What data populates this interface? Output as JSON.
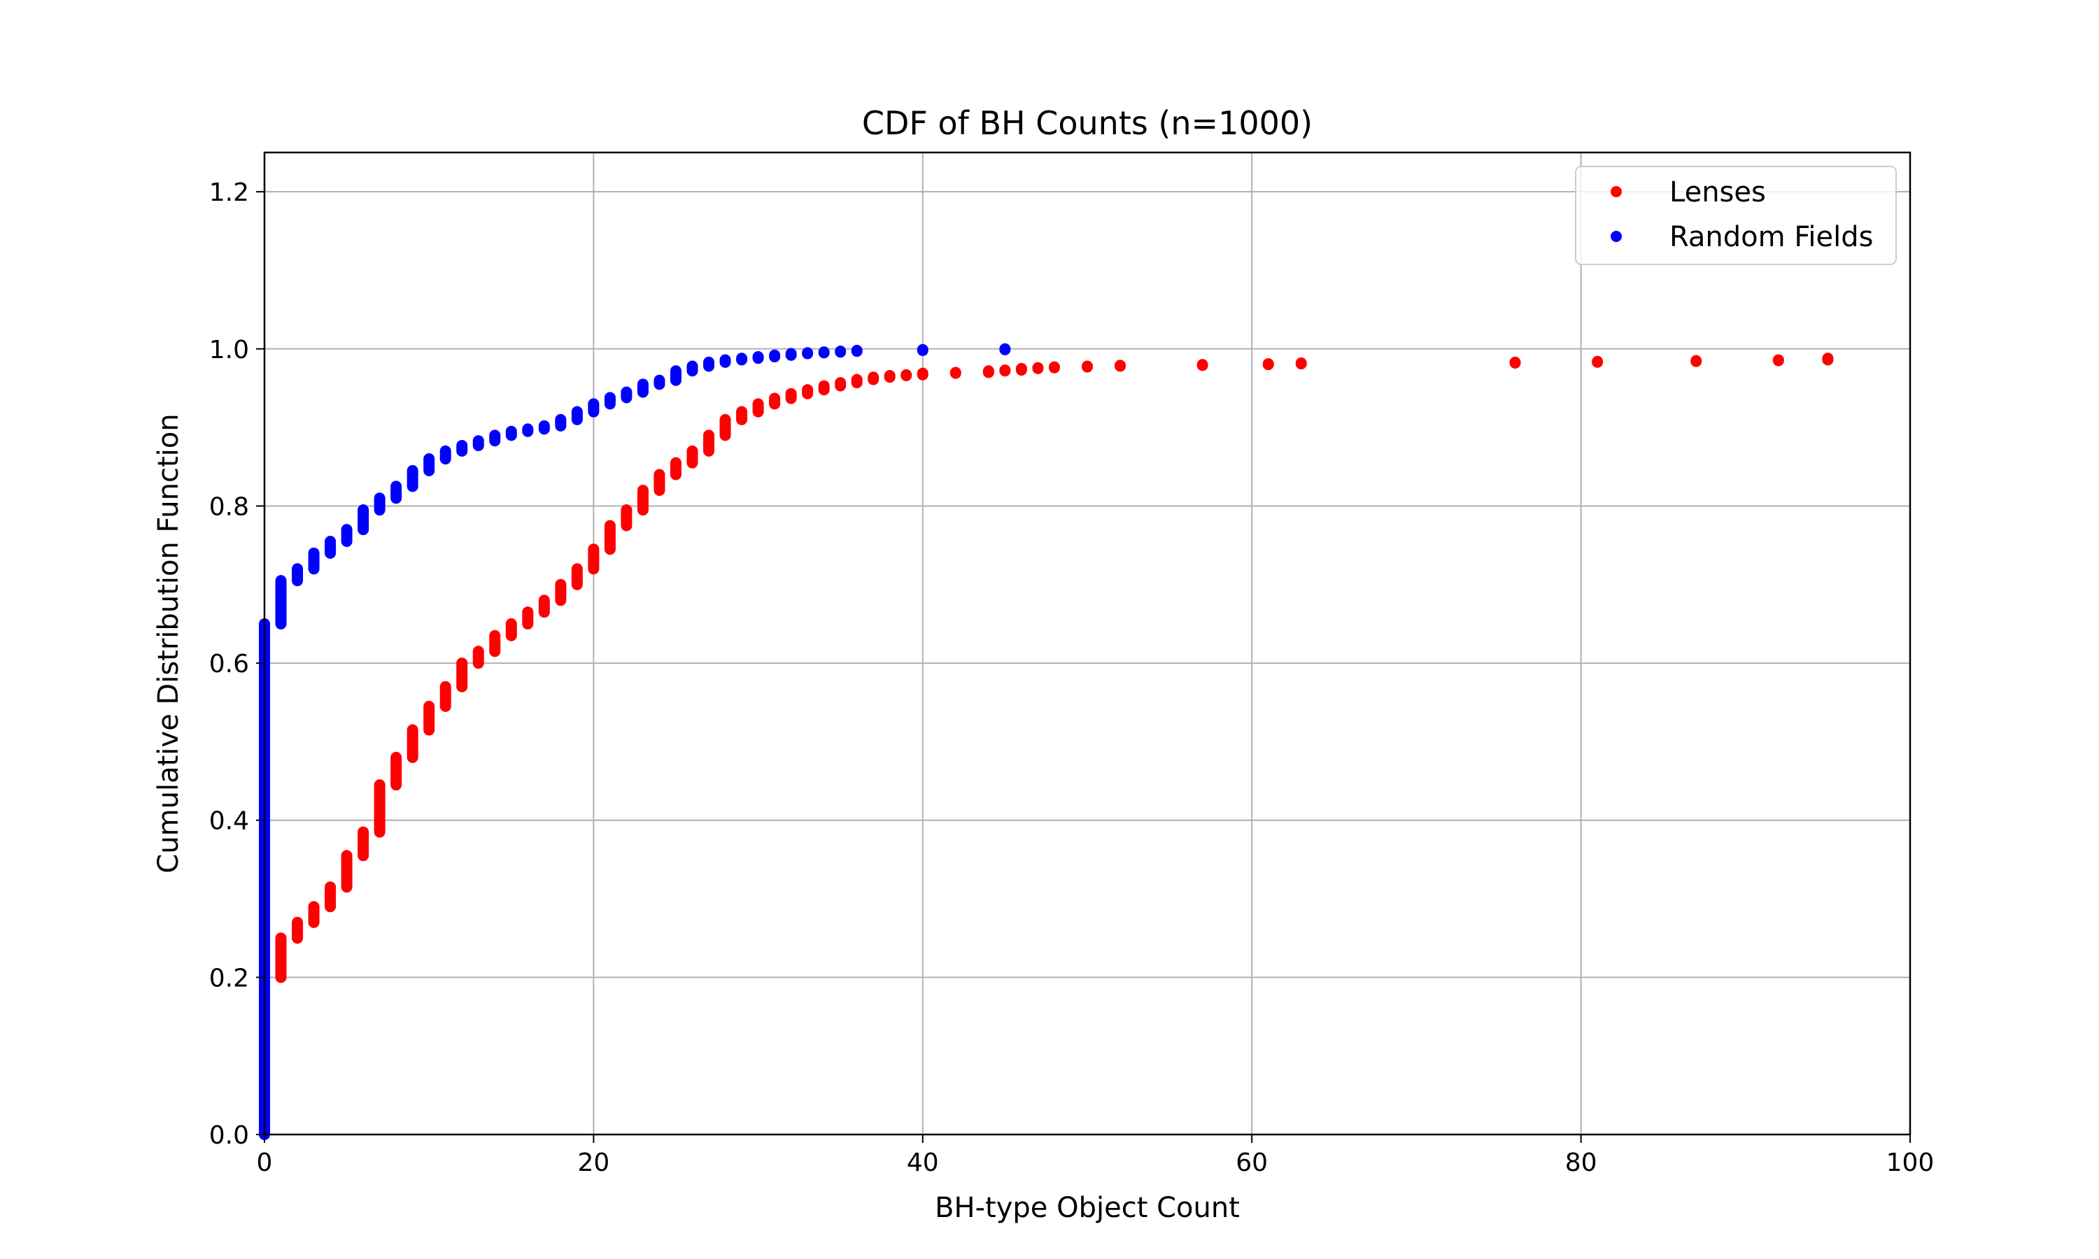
{
  "chart_data": {
    "type": "scatter",
    "title": "CDF of BH Counts (n=1000)",
    "xlabel": "BH-type Object Count",
    "ylabel": "Cumulative Distribution Function",
    "xlim": [
      0,
      100
    ],
    "ylim": [
      0,
      1.25
    ],
    "xticks": [
      "0",
      "20",
      "40",
      "60",
      "80",
      "100"
    ],
    "yticks": [
      "0.0",
      "0.2",
      "0.4",
      "0.6",
      "0.8",
      "1.0",
      "1.2"
    ],
    "grid": true,
    "legend_position": "top-right",
    "colors": {
      "lenses": "#ff0000",
      "random_fields": "#0000ff"
    },
    "series": [
      {
        "name": "Lenses",
        "color": "#ff0000",
        "steps": [
          [
            1,
            0.2,
            0.25
          ],
          [
            2,
            0.25,
            0.27
          ],
          [
            3,
            0.27,
            0.29
          ],
          [
            4,
            0.29,
            0.315
          ],
          [
            5,
            0.315,
            0.355
          ],
          [
            6,
            0.355,
            0.385
          ],
          [
            7,
            0.385,
            0.445
          ],
          [
            8,
            0.445,
            0.48
          ],
          [
            9,
            0.48,
            0.515
          ],
          [
            10,
            0.515,
            0.545
          ],
          [
            11,
            0.545,
            0.57
          ],
          [
            12,
            0.57,
            0.6
          ],
          [
            13,
            0.6,
            0.615
          ],
          [
            14,
            0.615,
            0.635
          ],
          [
            15,
            0.635,
            0.65
          ],
          [
            16,
            0.65,
            0.665
          ],
          [
            17,
            0.665,
            0.68
          ],
          [
            18,
            0.68,
            0.7
          ],
          [
            19,
            0.7,
            0.72
          ],
          [
            20,
            0.72,
            0.745
          ],
          [
            21,
            0.745,
            0.775
          ],
          [
            22,
            0.775,
            0.795
          ],
          [
            23,
            0.795,
            0.82
          ],
          [
            24,
            0.82,
            0.84
          ],
          [
            25,
            0.84,
            0.855
          ],
          [
            26,
            0.855,
            0.87
          ],
          [
            27,
            0.87,
            0.89
          ],
          [
            28,
            0.89,
            0.91
          ],
          [
            29,
            0.91,
            0.92
          ],
          [
            30,
            0.92,
            0.93
          ],
          [
            31,
            0.93,
            0.937
          ],
          [
            32,
            0.937,
            0.943
          ],
          [
            33,
            0.943,
            0.948
          ],
          [
            34,
            0.948,
            0.953
          ],
          [
            35,
            0.953,
            0.957
          ],
          [
            36,
            0.957,
            0.961
          ],
          [
            37,
            0.961,
            0.964
          ],
          [
            38,
            0.964,
            0.966
          ],
          [
            39,
            0.966,
            0.967
          ],
          [
            40,
            0.967,
            0.969
          ],
          [
            42,
            0.969,
            0.97
          ],
          [
            44,
            0.97,
            0.972
          ],
          [
            45,
            0.972,
            0.973
          ],
          [
            46,
            0.973,
            0.975
          ],
          [
            47,
            0.975,
            0.976
          ],
          [
            48,
            0.976,
            0.977
          ],
          [
            50,
            0.977,
            0.978
          ],
          [
            52,
            0.978,
            0.979
          ],
          [
            57,
            0.979,
            0.98
          ],
          [
            61,
            0.98,
            0.981
          ],
          [
            63,
            0.981,
            0.982
          ],
          [
            76,
            0.982,
            0.983
          ],
          [
            81,
            0.983,
            0.984
          ],
          [
            87,
            0.984,
            0.985
          ],
          [
            92,
            0.985,
            0.986
          ],
          [
            95,
            0.986,
            0.988
          ]
        ]
      },
      {
        "name": "Random Fields",
        "color": "#0000ff",
        "steps": [
          [
            0,
            0.0,
            0.65
          ],
          [
            1,
            0.65,
            0.705
          ],
          [
            2,
            0.705,
            0.72
          ],
          [
            3,
            0.72,
            0.74
          ],
          [
            4,
            0.74,
            0.755
          ],
          [
            5,
            0.755,
            0.77
          ],
          [
            6,
            0.77,
            0.795
          ],
          [
            7,
            0.795,
            0.81
          ],
          [
            8,
            0.81,
            0.825
          ],
          [
            9,
            0.825,
            0.845
          ],
          [
            10,
            0.845,
            0.86
          ],
          [
            11,
            0.86,
            0.87
          ],
          [
            12,
            0.87,
            0.877
          ],
          [
            13,
            0.877,
            0.883
          ],
          [
            14,
            0.883,
            0.89
          ],
          [
            15,
            0.89,
            0.895
          ],
          [
            16,
            0.895,
            0.898
          ],
          [
            17,
            0.898,
            0.902
          ],
          [
            18,
            0.902,
            0.91
          ],
          [
            19,
            0.91,
            0.92
          ],
          [
            20,
            0.92,
            0.93
          ],
          [
            21,
            0.93,
            0.938
          ],
          [
            22,
            0.938,
            0.945
          ],
          [
            23,
            0.945,
            0.955
          ],
          [
            24,
            0.955,
            0.96
          ],
          [
            25,
            0.96,
            0.972
          ],
          [
            26,
            0.972,
            0.978
          ],
          [
            27,
            0.978,
            0.983
          ],
          [
            28,
            0.983,
            0.986
          ],
          [
            29,
            0.986,
            0.988
          ],
          [
            30,
            0.988,
            0.99
          ],
          [
            31,
            0.99,
            0.992
          ],
          [
            32,
            0.992,
            0.994
          ],
          [
            33,
            0.994,
            0.995
          ],
          [
            34,
            0.995,
            0.996
          ],
          [
            35,
            0.996,
            0.997
          ],
          [
            36,
            0.997,
            0.998
          ],
          [
            40,
            0.998,
            0.999
          ],
          [
            45,
            0.999,
            1.0
          ]
        ]
      }
    ]
  }
}
